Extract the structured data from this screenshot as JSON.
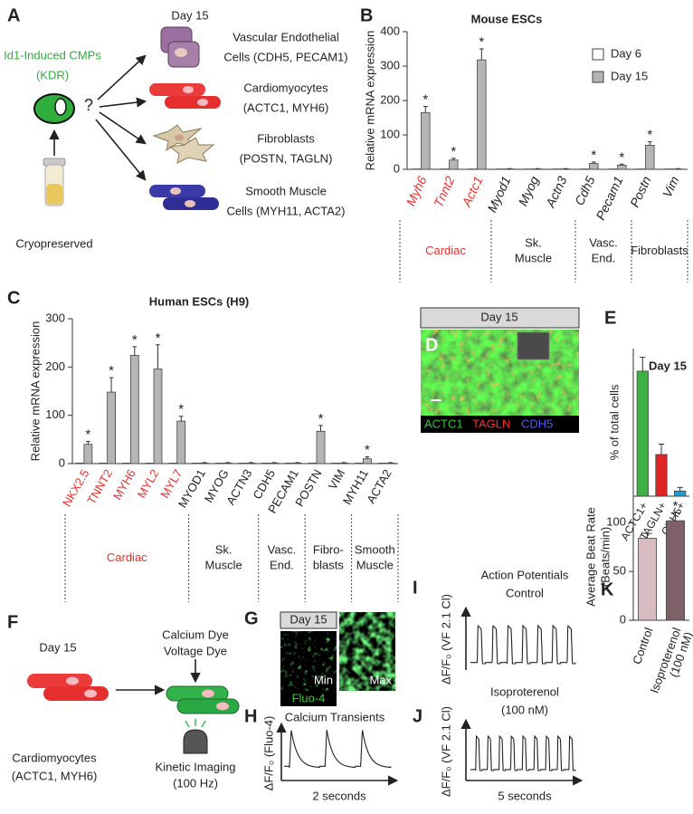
{
  "panels": {
    "A": {
      "letter": "A",
      "source": [
        "Id1-Induced CMPs",
        "(KDR)"
      ],
      "question": "?",
      "storage": "Cryopreserved",
      "day": "Day 15",
      "fates": [
        [
          "Vascular Endothelial",
          "Cells (CDH5, PECAM1)"
        ],
        [
          "Cardiomyocytes",
          "(ACTC1, MYH6)"
        ],
        [
          "Fibroblasts",
          "(POSTN, TAGLN)"
        ],
        [
          "Smooth Muscle",
          "Cells (MYH11, ACTA2)"
        ]
      ]
    },
    "D": {
      "letter": "D",
      "day": "Day 15",
      "stains": [
        "ACTC1",
        "TAGLN",
        "CDH5"
      ]
    },
    "F": {
      "letter": "F",
      "day": "Day 15",
      "dyes": [
        "Calcium Dye",
        "Voltage Dye"
      ],
      "cells": [
        "Cardiomyocytes",
        "(ACTC1, MYH6)"
      ],
      "imaging": [
        "Kinetic Imaging",
        "(100 Hz)"
      ]
    },
    "G": {
      "letter": "G",
      "day": "Day 15",
      "min": "Min",
      "max": "Max",
      "dye": "Fluo-4"
    },
    "H": {
      "letter": "H",
      "title": "Calcium Transients",
      "ylabel": "ΔF/F₀ (Fluo-4)",
      "xlabel": "2 seconds"
    },
    "I": {
      "letter": "I",
      "title": [
        "Action Potentials",
        "Control"
      ],
      "ylabel": "ΔF/F₀ (VF 2.1 Cl)"
    },
    "J": {
      "letter": "J",
      "title": [
        "Isoproterenol",
        "(100 nM)"
      ],
      "ylabel": "ΔF/F₀ (VF 2.1 Cl)",
      "xlabel": "5 seconds"
    }
  },
  "chart_data": [
    {
      "type": "bar",
      "letter": "B",
      "title": "Mouse ESCs",
      "ylabel": "Relative mRNA expression",
      "categories": [
        "Myh6",
        "Tnnt2",
        "Actc1",
        "Myod1",
        "Myog",
        "Actn3",
        "Cdh5",
        "Pecam1",
        "Postn",
        "Vim"
      ],
      "category_colors": [
        "#e8312f",
        "#e8312f",
        "#e8312f",
        "#222222",
        "#222222",
        "#222222",
        "#222222",
        "#222222",
        "#222222",
        "#222222"
      ],
      "italic_labels": true,
      "ylim": [
        0,
        400
      ],
      "yticks": [
        0,
        100,
        200,
        300,
        400
      ],
      "series": [
        {
          "name": "Day 6",
          "color": "#ffffff",
          "values": [
            1,
            1,
            1,
            1,
            1,
            1,
            1,
            1,
            1,
            1
          ]
        },
        {
          "name": "Day 15",
          "color": "#b5b5b5",
          "values": [
            165,
            27,
            318,
            1,
            1,
            1,
            17,
            12,
            70,
            1
          ],
          "errors": [
            18,
            5,
            32,
            1,
            1,
            1,
            4,
            3,
            10,
            1
          ]
        }
      ],
      "significance": {
        "label": "*",
        "flags": [
          true,
          true,
          true,
          false,
          false,
          false,
          true,
          true,
          true,
          false
        ]
      },
      "groups": [
        {
          "label": [
            "Cardiac"
          ],
          "color": "#e8312f",
          "first": 0,
          "last": 2
        },
        {
          "label": [
            "Sk.",
            "Muscle"
          ],
          "first": 3,
          "last": 5
        },
        {
          "label": [
            "Vasc.",
            "End."
          ],
          "first": 6,
          "last": 7
        },
        {
          "label": [
            "Fibroblasts"
          ],
          "first": 8,
          "last": 9
        }
      ],
      "legend": "upper right"
    },
    {
      "type": "bar",
      "letter": "C",
      "title": "Human ESCs (H9)",
      "ylabel": "Relative mRNA expression",
      "categories": [
        "NKX2.5",
        "TNNT2",
        "MYH6",
        "MYL2",
        "MYL7",
        "MYOD1",
        "MYOG",
        "ACTN3",
        "CDH5",
        "PECAM1",
        "POSTN",
        "VIM",
        "MYH11",
        "ACTA2"
      ],
      "category_colors": [
        "#e8312f",
        "#e8312f",
        "#e8312f",
        "#e8312f",
        "#e8312f",
        "#222222",
        "#222222",
        "#222222",
        "#222222",
        "#222222",
        "#222222",
        "#222222",
        "#222222",
        "#222222"
      ],
      "ylim": [
        0,
        300
      ],
      "yticks": [
        0,
        100,
        200,
        300
      ],
      "series": [
        {
          "color": "#ffffff",
          "values": [
            1,
            1,
            1,
            1,
            1,
            1,
            1,
            1,
            1,
            1,
            1,
            1,
            1,
            1
          ]
        },
        {
          "color": "#b5b5b5",
          "values": [
            40,
            148,
            224,
            196,
            88,
            1,
            1,
            1,
            1,
            1,
            67,
            1,
            10,
            1
          ],
          "errors": [
            6,
            30,
            18,
            50,
            10,
            1,
            1,
            1,
            1,
            1,
            12,
            1,
            4,
            1
          ]
        }
      ],
      "significance": {
        "label": "*",
        "flags": [
          true,
          true,
          true,
          true,
          true,
          false,
          false,
          false,
          false,
          false,
          true,
          false,
          true,
          false
        ]
      },
      "groups": [
        {
          "label": [
            "Cardiac"
          ],
          "color": "#e8312f",
          "first": 0,
          "last": 4
        },
        {
          "label": [
            "Sk.",
            "Muscle"
          ],
          "first": 5,
          "last": 7
        },
        {
          "label": [
            "Vasc.",
            "End."
          ],
          "first": 8,
          "last": 9
        },
        {
          "label": [
            "Fibro-",
            "blasts"
          ],
          "first": 10,
          "last": 11
        },
        {
          "label": [
            "Smooth",
            "Muscle"
          ],
          "first": 12,
          "last": 13
        }
      ]
    },
    {
      "type": "bar",
      "letter": "E",
      "title": "Day 15",
      "ylabel": "% of total cells",
      "categories": [
        "ACTC1+",
        "TAGLN+",
        "CDH5+"
      ],
      "colors": [
        "#3cb043",
        "#e02424",
        "#1e9ad6"
      ],
      "values": [
        72,
        24,
        3
      ],
      "errors": [
        8,
        6,
        2
      ],
      "ylim": [
        0,
        85
      ]
    },
    {
      "type": "bar",
      "letter": "K",
      "ylabel": [
        "Average Beat Rate",
        "(Beats/min)"
      ],
      "categories": [
        [
          "Control"
        ],
        [
          "Isoproterenol",
          "(100 nM)"
        ]
      ],
      "colors": [
        "#d8bcc2",
        "#7d6167"
      ],
      "values": [
        84,
        102
      ],
      "errors": [
        5,
        8
      ],
      "ylim": [
        0,
        130
      ],
      "yticks": [
        0,
        50,
        100
      ],
      "significance": {
        "label": "*",
        "flags": [
          false,
          true
        ]
      }
    }
  ]
}
